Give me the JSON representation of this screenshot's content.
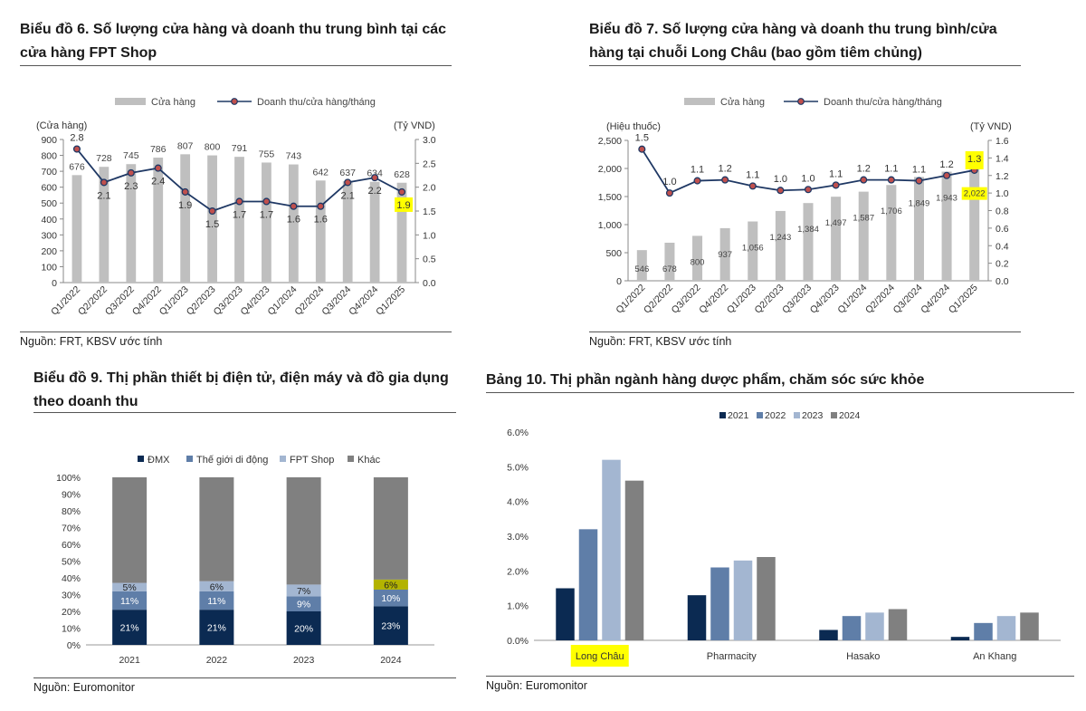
{
  "panels": {
    "p6": {
      "title": "Biểu đồ 6. Số lượng cửa hàng và doanh thu trung bình tại các cửa hàng FPT Shop",
      "source": "Nguồn: FRT, KBSV ước tính"
    },
    "p7": {
      "title": "Biểu đồ 7. Số lượng cửa hàng và doanh thu trung bình/cửa hàng tại chuỗi Long Châu (bao gồm tiêm chủng)",
      "source": "Nguồn: FRT, KBSV ước tính"
    },
    "p9": {
      "title": "Biểu đồ 9. Thị phần thiết bị điện tử, điện máy và đồ gia dụng theo doanh thu",
      "source": "Nguồn: Euromonitor"
    },
    "p10": {
      "title": "Bảng 10. Thị phần ngành hàng dược phẩm, chăm sóc sức khỏe",
      "source": "Nguồn: Euromonitor"
    }
  },
  "colors": {
    "bar_gray": "#bfbfbf",
    "line": "#1f3864",
    "marker_fill": "#c0504d",
    "highlight": "#ffff00",
    "dmx": "#0b2a52",
    "tgdd": "#5f7ea8",
    "fpt": "#a3b6d1",
    "other": "#808080",
    "y2021": "#0b2a52",
    "y2022": "#5f7ea8",
    "y2023": "#a3b6d1",
    "y2024": "#808080"
  },
  "chart_data": [
    {
      "id": "fpt_shop",
      "type": "bar",
      "categories": [
        "Q1/2022",
        "Q2/2022",
        "Q3/2022",
        "Q4/2022",
        "Q1/2023",
        "Q2/2023",
        "Q3/2023",
        "Q4/2023",
        "Q1/2024",
        "Q2/2024",
        "Q3/2024",
        "Q4/2024",
        "Q1/2025"
      ],
      "series": [
        {
          "name": "Cửa hàng",
          "type": "bar",
          "axis": "left",
          "values": [
            676,
            728,
            745,
            786,
            807,
            800,
            791,
            755,
            743,
            642,
            637,
            634,
            628
          ],
          "labels": [
            "676",
            "728",
            "745",
            "786",
            "807",
            "800",
            "791",
            "755",
            "743",
            "642",
            "637",
            "634",
            "628"
          ]
        },
        {
          "name": "Doanh thu/cửa hàng/tháng",
          "type": "line",
          "axis": "right",
          "values": [
            2.8,
            2.1,
            2.3,
            2.4,
            1.9,
            1.5,
            1.7,
            1.7,
            1.6,
            1.6,
            2.1,
            2.2,
            1.9
          ],
          "labels": [
            "2.8",
            "2.1",
            "2.3",
            "2.4",
            "1.9",
            "1.5",
            "1.7",
            "1.7",
            "1.6",
            "1.6",
            "2.1",
            "2.2",
            "1.9"
          ]
        }
      ],
      "y_left": {
        "label": "(Cửa hàng)",
        "min": 0,
        "max": 900,
        "ticks": [
          "0",
          "100",
          "200",
          "300",
          "400",
          "500",
          "600",
          "700",
          "800",
          "900"
        ]
      },
      "y_right": {
        "label": "(Tỷ VND)",
        "min": 0,
        "max": 3,
        "ticks": [
          "0.0",
          "0.5",
          "1.0",
          "1.5",
          "2.0",
          "2.5",
          "3.0"
        ]
      },
      "legend": "top",
      "highlight": "last line label"
    },
    {
      "id": "long_chau",
      "type": "bar",
      "categories": [
        "Q1/2022",
        "Q2/2022",
        "Q3/2022",
        "Q4/2022",
        "Q1/2023",
        "Q2/2023",
        "Q3/2023",
        "Q4/2023",
        "Q1/2024",
        "Q2/2024",
        "Q3/2024",
        "Q4/2024",
        "Q1/2025"
      ],
      "series": [
        {
          "name": "Cửa hàng",
          "type": "bar",
          "axis": "left",
          "values": [
            546,
            678,
            800,
            937,
            1056,
            1243,
            1384,
            1497,
            1587,
            1706,
            1849,
            1943,
            2022
          ],
          "labels": [
            "546",
            "678",
            "800",
            "937",
            "1,056",
            "1,243",
            "1,384",
            "1,497",
            "1,587",
            "1,706",
            "1,849",
            "1,943",
            "2,022"
          ]
        },
        {
          "name": "Doanh thu/cửa hàng/tháng",
          "type": "line",
          "axis": "right",
          "values": [
            1.5,
            1.0,
            1.14,
            1.15,
            1.08,
            1.03,
            1.04,
            1.09,
            1.15,
            1.15,
            1.14,
            1.2,
            1.26
          ],
          "labels": [
            "1.5",
            "1.0",
            "1.1",
            "1.2",
            "1.1",
            "1.0",
            "1.0",
            "1.1",
            "1.2",
            "1.1",
            "1.1",
            "1.2",
            "1.3"
          ]
        }
      ],
      "y_left": {
        "label": "(Hiệu thuốc)",
        "min": 0,
        "max": 2500,
        "ticks": [
          "0",
          "500",
          "1,000",
          "1,500",
          "2,000",
          "2,500"
        ]
      },
      "y_right": {
        "label": "(Tỷ VND)",
        "min": 0,
        "max": 1.6,
        "ticks": [
          "0.0",
          "0.2",
          "0.4",
          "0.6",
          "0.8",
          "1.0",
          "1.2",
          "1.4",
          "1.6"
        ]
      },
      "legend": "top",
      "highlight": "last bar and line labels"
    },
    {
      "id": "electronics_share",
      "type": "bar",
      "stacked": true,
      "categories": [
        "2021",
        "2022",
        "2023",
        "2024"
      ],
      "series": [
        {
          "name": "ĐMX",
          "values": [
            21,
            21,
            20,
            23
          ],
          "labels": [
            "21%",
            "21%",
            "20%",
            "23%"
          ]
        },
        {
          "name": "Thế giới di động",
          "values": [
            11,
            11,
            9,
            10
          ],
          "labels": [
            "11%",
            "11%",
            "9%",
            "10%"
          ]
        },
        {
          "name": "FPT Shop",
          "values": [
            5,
            6,
            7,
            6
          ],
          "labels": [
            "5%",
            "6%",
            "7%",
            "6%"
          ]
        },
        {
          "name": "Khác",
          "values": [
            63,
            62,
            64,
            61
          ]
        }
      ],
      "y": {
        "min": 0,
        "max": 100,
        "ticks": [
          "0%",
          "10%",
          "20%",
          "30%",
          "40%",
          "50%",
          "60%",
          "70%",
          "80%",
          "90%",
          "100%"
        ]
      },
      "legend": "top",
      "highlight": "FPT Shop 2024"
    },
    {
      "id": "pharma_share",
      "type": "bar",
      "categories": [
        "Long Châu",
        "Pharmacity",
        "Hasako",
        "An Khang"
      ],
      "series": [
        {
          "name": "2021",
          "values": [
            1.5,
            1.3,
            0.3,
            0.1
          ]
        },
        {
          "name": "2022",
          "values": [
            3.2,
            2.1,
            0.7,
            0.5
          ]
        },
        {
          "name": "2023",
          "values": [
            5.2,
            2.3,
            0.8,
            0.7
          ]
        },
        {
          "name": "2024",
          "values": [
            4.6,
            2.4,
            0.9,
            0.8
          ]
        }
      ],
      "y": {
        "min": 0,
        "max": 6,
        "ticks": [
          "0.0%",
          "1.0%",
          "2.0%",
          "3.0%",
          "4.0%",
          "5.0%",
          "6.0%"
        ]
      },
      "legend": "top",
      "highlight": "Long Châu category label"
    }
  ]
}
